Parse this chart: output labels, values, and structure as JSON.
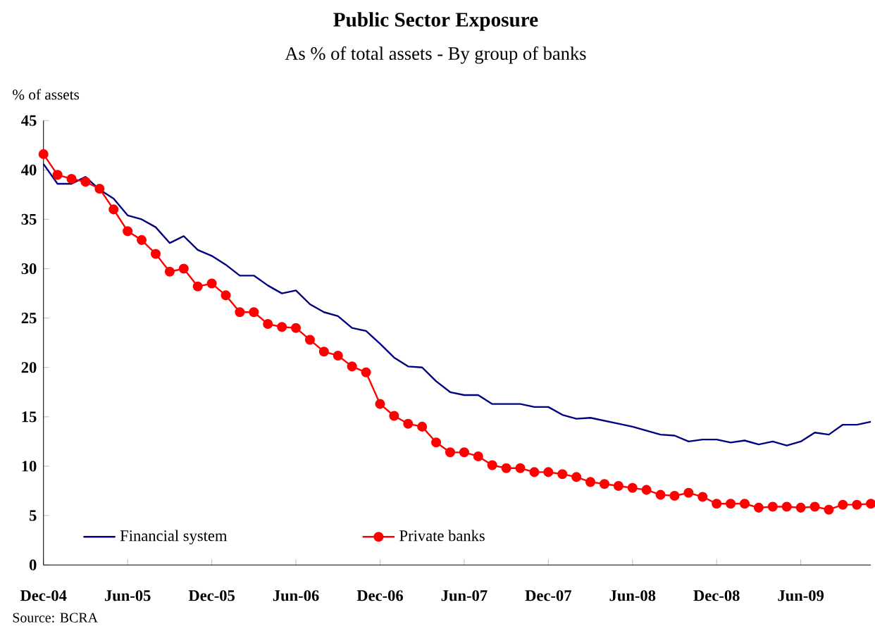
{
  "chart_data": {
    "type": "line",
    "title": "Public Sector Exposure",
    "subtitle": "As % of total assets - By group of banks",
    "ylabel": "% of assets",
    "annotations": [
      "Source: BCRA"
    ],
    "x": [
      "2004-12",
      "2005-01",
      "2005-02",
      "2005-03",
      "2005-04",
      "2005-05",
      "2005-06",
      "2005-07",
      "2005-08",
      "2005-09",
      "2005-10",
      "2005-11",
      "2005-12",
      "2006-01",
      "2006-02",
      "2006-03",
      "2006-04",
      "2006-05",
      "2006-06",
      "2006-07",
      "2006-08",
      "2006-09",
      "2006-10",
      "2006-11",
      "2006-12",
      "2007-01",
      "2007-02",
      "2007-03",
      "2007-04",
      "2007-05",
      "2007-06",
      "2007-07",
      "2007-08",
      "2007-09",
      "2007-10",
      "2007-11",
      "2007-12",
      "2008-01",
      "2008-02",
      "2008-03",
      "2008-04",
      "2008-05",
      "2008-06",
      "2008-07",
      "2008-08",
      "2008-09",
      "2008-10",
      "2008-11",
      "2008-12",
      "2009-01",
      "2009-02",
      "2009-03",
      "2009-04",
      "2009-05",
      "2009-06",
      "2009-07",
      "2009-08",
      "2009-09",
      "2009-10",
      "2009-11"
    ],
    "series": [
      {
        "name": "Financial system",
        "color": "#000080",
        "marker": "none",
        "values": [
          40.6,
          38.6,
          38.6,
          39.3,
          38.0,
          37.1,
          35.4,
          35.0,
          34.2,
          32.6,
          33.3,
          31.9,
          31.3,
          30.4,
          29.3,
          29.3,
          28.3,
          27.5,
          27.8,
          26.4,
          25.6,
          25.2,
          24.0,
          23.7,
          22.4,
          21.0,
          20.1,
          20.0,
          18.6,
          17.5,
          17.2,
          17.2,
          16.3,
          16.3,
          16.3,
          16.0,
          16.0,
          15.2,
          14.8,
          14.9,
          14.6,
          14.3,
          14.0,
          13.6,
          13.2,
          13.1,
          12.5,
          12.7,
          12.7,
          12.4,
          12.6,
          12.2,
          12.5,
          12.1,
          12.5,
          13.4,
          13.2,
          14.2,
          14.2,
          14.5
        ]
      },
      {
        "name": "Private banks",
        "color": "#ff0000",
        "marker": "circle",
        "values": [
          41.6,
          39.5,
          39.1,
          38.8,
          38.1,
          36.0,
          33.8,
          32.9,
          31.5,
          29.7,
          30.0,
          28.2,
          28.5,
          27.3,
          25.6,
          25.6,
          24.4,
          24.1,
          24.0,
          22.8,
          21.6,
          21.2,
          20.1,
          19.5,
          16.3,
          15.1,
          14.3,
          14.0,
          12.4,
          11.4,
          11.4,
          11.0,
          10.1,
          9.8,
          9.8,
          9.4,
          9.4,
          9.2,
          8.9,
          8.4,
          8.2,
          8.0,
          7.8,
          7.6,
          7.1,
          7.0,
          7.3,
          6.9,
          6.2,
          6.2,
          6.2,
          5.8,
          5.9,
          5.9,
          5.8,
          5.9,
          5.6,
          6.1,
          6.1,
          6.2
        ]
      }
    ],
    "xlim": [
      "2004-12",
      "2009-11"
    ],
    "xticks": [
      {
        "value": "2004-12",
        "label": "Dec-04"
      },
      {
        "value": "2005-06",
        "label": "Jun-05"
      },
      {
        "value": "2005-12",
        "label": "Dec-05"
      },
      {
        "value": "2006-06",
        "label": "Jun-06"
      },
      {
        "value": "2006-12",
        "label": "Dec-06"
      },
      {
        "value": "2007-06",
        "label": "Jun-07"
      },
      {
        "value": "2007-12",
        "label": "Dec-07"
      },
      {
        "value": "2008-06",
        "label": "Jun-08"
      },
      {
        "value": "2008-12",
        "label": "Dec-08"
      },
      {
        "value": "2009-06",
        "label": "Jun-09"
      }
    ],
    "ylim": [
      0,
      45
    ],
    "yticks": [
      0,
      5,
      10,
      15,
      20,
      25,
      30,
      35,
      40,
      45
    ],
    "legend": "bottom",
    "grid": false,
    "line_style": "solid"
  }
}
